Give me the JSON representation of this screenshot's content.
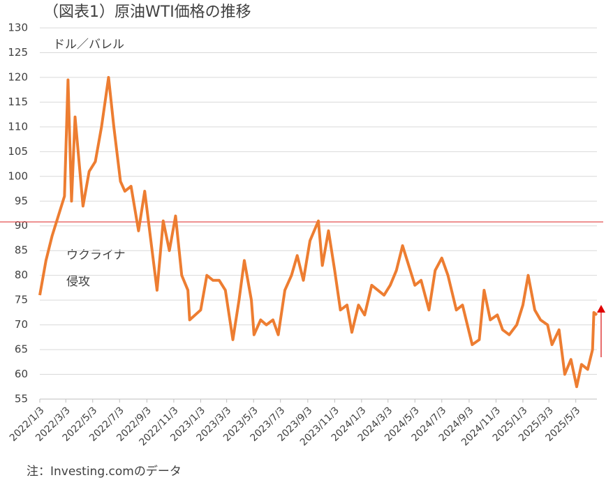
{
  "chart_data": {
    "type": "line",
    "title": "（図表1）原油WTI価格の推移",
    "y_label": "ドル／バレル",
    "annotations": [
      "ウクライナ",
      "侵攻"
    ],
    "note": "注：Investing.comのデータ",
    "x": [
      "2022/1/3",
      "2022/1/17",
      "2022/1/31",
      "2022/2/14",
      "2022/2/28",
      "2022/3/8",
      "2022/3/16",
      "2022/3/24",
      "2022/4/11",
      "2022/4/25",
      "2022/5/9",
      "2022/5/23",
      "2022/6/8",
      "2022/6/20",
      "2022/7/5",
      "2022/7/15",
      "2022/7/29",
      "2022/8/15",
      "2022/8/29",
      "2022/9/12",
      "2022/9/26",
      "2022/10/10",
      "2022/10/24",
      "2022/11/7",
      "2022/11/21",
      "2022/12/5",
      "2022/12/9",
      "2023/1/3",
      "2023/1/17",
      "2023/1/31",
      "2023/2/14",
      "2023/2/28",
      "2023/3/17",
      "2023/3/31",
      "2023/4/12",
      "2023/4/28",
      "2023/5/4",
      "2023/5/19",
      "2023/6/1",
      "2023/6/16",
      "2023/6/28",
      "2023/7/13",
      "2023/7/28",
      "2023/8/10",
      "2023/8/24",
      "2023/9/8",
      "2023/9/27",
      "2023/10/6",
      "2023/10/20",
      "2023/11/3",
      "2023/11/16",
      "2023/12/1",
      "2023/12/12",
      "2023/12/27",
      "2024/1/10",
      "2024/1/26",
      "2024/2/9",
      "2024/2/23",
      "2024/3/8",
      "2024/3/22",
      "2024/4/5",
      "2024/4/19",
      "2024/5/3",
      "2024/5/17",
      "2024/6/4",
      "2024/6/18",
      "2024/7/3",
      "2024/7/17",
      "2024/8/5",
      "2024/8/19",
      "2024/9/10",
      "2024/9/26",
      "2024/10/7",
      "2024/10/21",
      "2024/11/6",
      "2024/11/18",
      "2024/12/3",
      "2024/12/20",
      "2025/1/3",
      "2025/1/15",
      "2025/1/30",
      "2025/2/12",
      "2025/2/28",
      "2025/3/10",
      "2025/3/26",
      "2025/4/8",
      "2025/4/22",
      "2025/5/5",
      "2025/5/16",
      "2025/5/30",
      "2025/6/10",
      "2025/6/13",
      "2025/6/20"
    ],
    "series": [
      {
        "color": "#ED7D31",
        "values": [
          76,
          83,
          88,
          92,
          96,
          119.5,
          95,
          112,
          94,
          101,
          103,
          110,
          120,
          110,
          99,
          97,
          98,
          89,
          97,
          87,
          77,
          91,
          85,
          92,
          80,
          77,
          71,
          73,
          80,
          79,
          79,
          77,
          67,
          75,
          83,
          75,
          68,
          71,
          70,
          71,
          68,
          77,
          80,
          84,
          79,
          87,
          91,
          82,
          89,
          81,
          73,
          74,
          68.5,
          74,
          72,
          78,
          77,
          76,
          78,
          81,
          86,
          82,
          78,
          79,
          73,
          81,
          83.5,
          80,
          73,
          74,
          66,
          67,
          77,
          71,
          72,
          69,
          68,
          70,
          74,
          80,
          73,
          71,
          70,
          66,
          69,
          60,
          63,
          57.5,
          62,
          61,
          65,
          72.5,
          72
        ]
      }
    ],
    "xlim": [
      "2022/1/3",
      "2025/6/20"
    ],
    "xticks": [
      "2022/1/3",
      "2022/3/3",
      "2022/5/3",
      "2022/7/3",
      "2022/9/3",
      "2022/11/3",
      "2023/1/3",
      "2023/3/3",
      "2023/5/3",
      "2023/7/3",
      "2023/9/3",
      "2023/11/3",
      "2024/1/3",
      "2024/3/3",
      "2024/5/3",
      "2024/7/3",
      "2024/9/3",
      "2024/11/3",
      "2025/1/3",
      "2025/3/3",
      "2025/5/3"
    ],
    "ylim": [
      55,
      130
    ],
    "yticks": [
      55,
      60,
      65,
      70,
      75,
      80,
      85,
      90,
      95,
      100,
      105,
      110,
      115,
      120,
      125,
      130
    ],
    "grid": true,
    "reference_line": {
      "value": 90.8,
      "color": "#E03C3C"
    }
  }
}
